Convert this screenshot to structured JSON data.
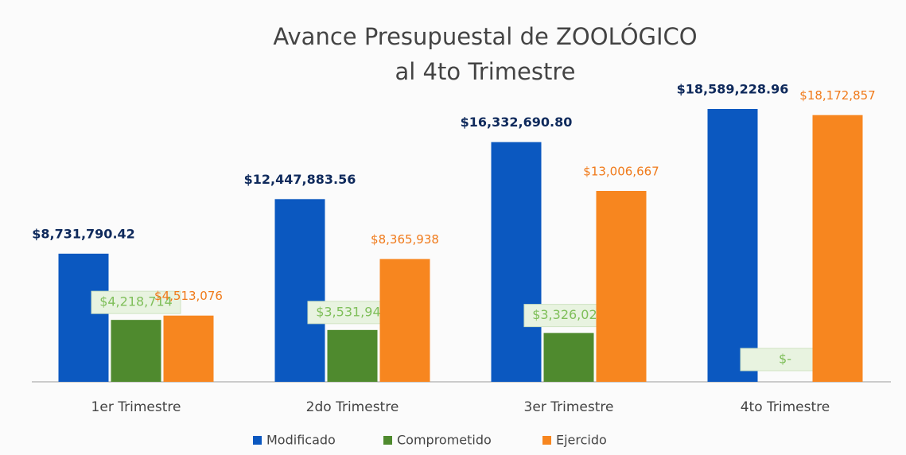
{
  "chart_data": {
    "type": "bar",
    "title": [
      "Avance Presupuestal de ZOOLÓGICO",
      "al 4to Trimestre"
    ],
    "categories": [
      "1er Trimestre",
      "2do Trimestre",
      "3er Trimestre",
      "4to Trimestre"
    ],
    "series": [
      {
        "name": "Modificado",
        "color": "#0b58c0",
        "label_color": "#0f2a5c",
        "values": [
          8731790.42,
          12447883.56,
          16332690.8,
          18589228.96
        ],
        "value_labels": [
          "$8,731,790.42",
          "$12,447,883.56",
          "$16,332,690.80",
          "$18,589,228.96"
        ]
      },
      {
        "name": "Comprometido",
        "color": "#4f8a2e",
        "label_color": "#7fbf5a",
        "values": [
          4218714,
          3531945,
          3326023,
          0
        ],
        "value_labels": [
          "$4,218,714",
          "$3,531,945",
          "$3,326,023",
          "$-"
        ]
      },
      {
        "name": "Ejercido",
        "color": "#f7861f",
        "label_color": "#f07a1a",
        "values": [
          4513076,
          8365938,
          13006667,
          18172857
        ],
        "value_labels": [
          "$4,513,076",
          "$8,365,938",
          "$13,006,667",
          "$18,172,857"
        ]
      }
    ],
    "legend": "bottom"
  }
}
